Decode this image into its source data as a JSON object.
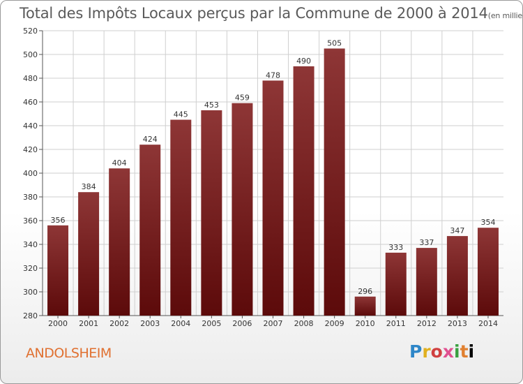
{
  "header": {
    "title": "Total des Impôts Locaux perçus par la Commune de 2000 à 2014",
    "unit": "(en milliers d'€)"
  },
  "footer": {
    "commune": "ANDOLSHEIM",
    "logo": [
      "P",
      "r",
      "o",
      "x",
      "i",
      "t",
      "i"
    ]
  },
  "colors": {
    "bar_top": "#8e3636",
    "bar_bottom": "#5c0a0a",
    "grid": "#cfcfcf",
    "commune": "#e07030"
  },
  "chart_data": {
    "type": "bar",
    "title": "Total des Impôts Locaux perçus par la Commune de 2000 à 2014",
    "xlabel": "",
    "ylabel": "",
    "ylim": [
      280,
      520
    ],
    "yticks": [
      280,
      300,
      320,
      340,
      360,
      380,
      400,
      420,
      440,
      460,
      480,
      500,
      520
    ],
    "categories": [
      "2000",
      "2001",
      "2002",
      "2003",
      "2004",
      "2005",
      "2006",
      "2007",
      "2008",
      "2009",
      "2010",
      "2011",
      "2012",
      "2013",
      "2014"
    ],
    "values": [
      356,
      384,
      404,
      424,
      445,
      453,
      459,
      478,
      490,
      505,
      296,
      333,
      337,
      347,
      354
    ],
    "grid": true,
    "legend": "none"
  }
}
